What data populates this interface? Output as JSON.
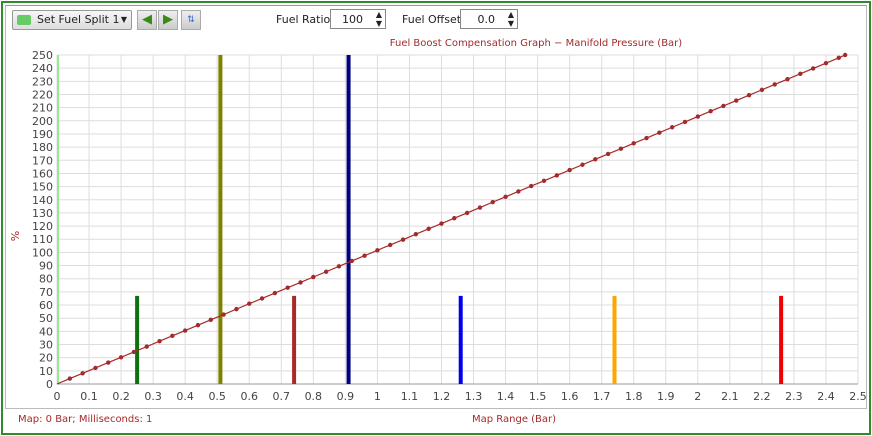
{
  "toolbar": {
    "split_label": "Set Fuel Split 1",
    "fuel_ratio_label": "Fuel Ratio",
    "fuel_ratio_value": "100",
    "fuel_offset_label": "Fuel Offset",
    "fuel_offset_value": "0.0",
    "icons": [
      "back-arrow-icon",
      "forward-arrow-icon",
      "swap-icon"
    ]
  },
  "footer": {
    "status": "Map: 0 Bar; Milliseconds: 1"
  },
  "chart_data": {
    "type": "line",
    "title": "Fuel Boost Compensation Graph − Manifold Pressure (Bar)",
    "xlabel": "Map Range (Bar)",
    "ylabel": "%",
    "xlim": [
      0,
      2.5
    ],
    "ylim": [
      0,
      250
    ],
    "grid": true,
    "xticks": [
      "0",
      "0.1",
      "0.2",
      "0.3",
      "0.4",
      "0.5",
      "0.6",
      "0.7",
      "0.8",
      "0.9",
      "1",
      "1.1",
      "1.2",
      "1.3",
      "1.4",
      "1.5",
      "1.6",
      "1.7",
      "1.8",
      "1.9",
      "2",
      "2.1",
      "2.2",
      "2.3",
      "2.4",
      "2.5"
    ],
    "yticks": [
      0,
      10,
      20,
      30,
      40,
      50,
      60,
      70,
      80,
      90,
      100,
      110,
      120,
      130,
      140,
      150,
      160,
      170,
      180,
      190,
      200,
      210,
      220,
      230,
      240,
      250
    ],
    "series": [
      {
        "color": "#a52a2a",
        "points": [
          [
            0,
            0
          ],
          [
            0.04,
            4.1
          ],
          [
            0.08,
            8.1
          ],
          [
            0.12,
            12.2
          ],
          [
            0.16,
            16.3
          ],
          [
            0.2,
            20.3
          ],
          [
            0.24,
            24.4
          ],
          [
            0.28,
            28.4
          ],
          [
            0.32,
            32.5
          ],
          [
            0.36,
            36.6
          ],
          [
            0.4,
            40.6
          ],
          [
            0.44,
            44.7
          ],
          [
            0.48,
            48.8
          ],
          [
            0.52,
            52.8
          ],
          [
            0.56,
            56.9
          ],
          [
            0.6,
            61
          ],
          [
            0.64,
            65
          ],
          [
            0.68,
            69.1
          ],
          [
            0.72,
            73.2
          ],
          [
            0.76,
            77.2
          ],
          [
            0.8,
            81.3
          ],
          [
            0.84,
            85.3
          ],
          [
            0.88,
            89.4
          ],
          [
            0.92,
            93.5
          ],
          [
            0.96,
            97.5
          ],
          [
            1.0,
            101.6
          ],
          [
            1.04,
            105.7
          ],
          [
            1.08,
            109.7
          ],
          [
            1.12,
            113.8
          ],
          [
            1.16,
            117.9
          ],
          [
            1.2,
            121.9
          ],
          [
            1.24,
            126
          ],
          [
            1.28,
            130
          ],
          [
            1.32,
            134.1
          ],
          [
            1.36,
            138.2
          ],
          [
            1.4,
            142.2
          ],
          [
            1.44,
            146.3
          ],
          [
            1.48,
            150.4
          ],
          [
            1.52,
            154.4
          ],
          [
            1.56,
            158.5
          ],
          [
            1.6,
            162.6
          ],
          [
            1.64,
            166.6
          ],
          [
            1.68,
            170.7
          ],
          [
            1.72,
            174.8
          ],
          [
            1.76,
            178.8
          ],
          [
            1.8,
            182.9
          ],
          [
            1.84,
            186.9
          ],
          [
            1.88,
            191
          ],
          [
            1.92,
            195.1
          ],
          [
            1.96,
            199.1
          ],
          [
            2.0,
            203.2
          ],
          [
            2.04,
            207.3
          ],
          [
            2.08,
            211.3
          ],
          [
            2.12,
            215.4
          ],
          [
            2.16,
            219.5
          ],
          [
            2.2,
            223.5
          ],
          [
            2.24,
            227.6
          ],
          [
            2.28,
            231.6
          ],
          [
            2.32,
            235.7
          ],
          [
            2.36,
            239.8
          ],
          [
            2.4,
            243.8
          ],
          [
            2.44,
            247.9
          ],
          [
            2.46,
            250
          ]
        ]
      }
    ],
    "markers": [
      {
        "x": 0,
        "height": 250,
        "color": "#90ee90"
      },
      {
        "x": 0.25,
        "height": 67,
        "color": "#107010"
      },
      {
        "x": 0.51,
        "height": 250,
        "color": "#808000"
      },
      {
        "x": 0.74,
        "height": 67,
        "color": "#a52a2a"
      },
      {
        "x": 0.91,
        "height": 250,
        "color": "#000080"
      },
      {
        "x": 1.26,
        "height": 67,
        "color": "#0000ee"
      },
      {
        "x": 1.74,
        "height": 67,
        "color": "#ffa500"
      },
      {
        "x": 2.26,
        "height": 67,
        "color": "#ee0000"
      }
    ]
  }
}
